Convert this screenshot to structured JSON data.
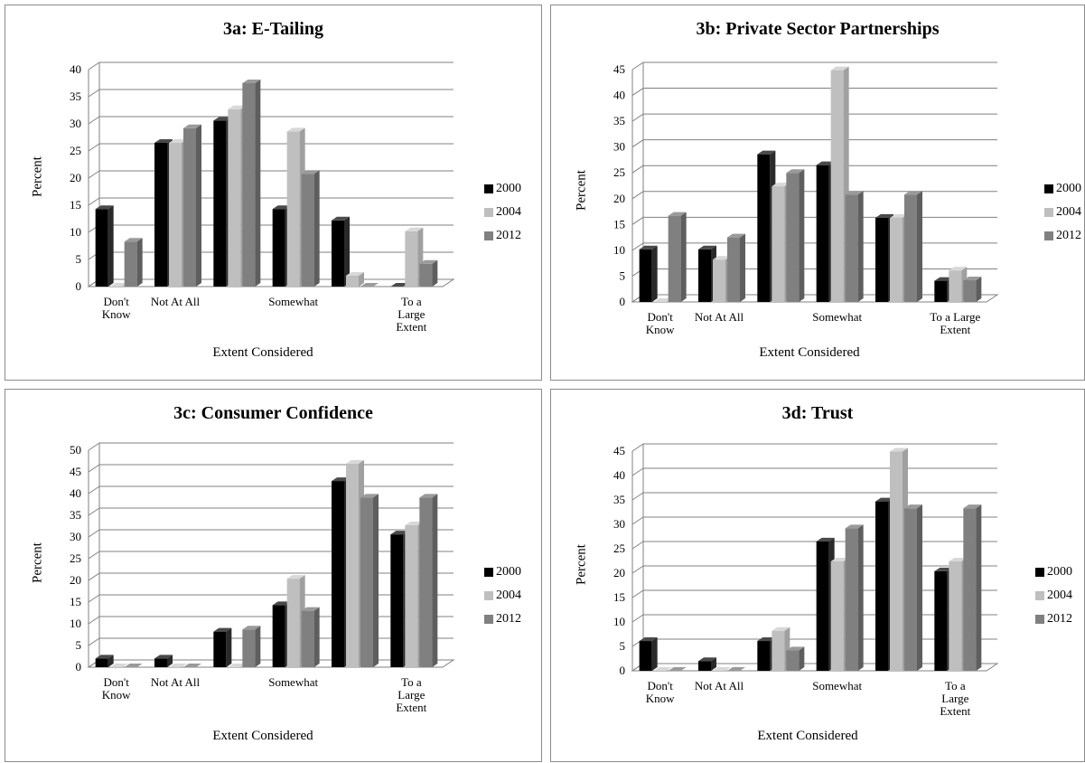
{
  "legend": [
    {
      "name": "2000",
      "color": "#000000",
      "side": "#2a2a2a",
      "top": "#4a4a4a"
    },
    {
      "name": "2004",
      "color": "#bfbfbf",
      "side": "#a0a0a0",
      "top": "#d8d8d8"
    },
    {
      "name": "2012",
      "color": "#808080",
      "side": "#5e5e5e",
      "top": "#9a9a9a"
    }
  ],
  "chart_data": [
    {
      "type": "bar",
      "title": "3a: E-Tailing",
      "xlabel": "Extent Considered",
      "ylabel": "Percent",
      "ylim": [
        0,
        40
      ],
      "yticks": [
        0,
        5,
        10,
        15,
        20,
        25,
        30,
        35,
        40
      ],
      "categories": [
        "Don't Know",
        "Not At All",
        "",
        "Somewhat",
        "",
        "To a Large Extent"
      ],
      "series": [
        {
          "name": "2000",
          "values": [
            14.3,
            26.5,
            30.6,
            14.3,
            12.2,
            0
          ]
        },
        {
          "name": "2004",
          "values": [
            0,
            26.5,
            32.7,
            28.6,
            2.0,
            10.2
          ]
        },
        {
          "name": "2012",
          "values": [
            8.3,
            29.2,
            37.5,
            20.8,
            0,
            4.2
          ]
        }
      ],
      "grid": true,
      "legend_position": "right"
    },
    {
      "type": "bar",
      "title": "3b: Private Sector Partnerships",
      "xlabel": "Extent Considered",
      "ylabel": "Percent",
      "ylim": [
        0,
        45
      ],
      "yticks": [
        0,
        5,
        10,
        15,
        20,
        25,
        30,
        35,
        40,
        45
      ],
      "categories": [
        "Don't Know",
        "Not At All",
        "",
        "Somewhat",
        "",
        "To a Large Extent"
      ],
      "series": [
        {
          "name": "2000",
          "values": [
            10.2,
            10.2,
            28.6,
            26.5,
            16.3,
            4.1
          ]
        },
        {
          "name": "2004",
          "values": [
            0,
            8.2,
            22.4,
            44.9,
            16.3,
            6.1
          ]
        },
        {
          "name": "2012",
          "values": [
            16.7,
            12.5,
            25.0,
            20.8,
            20.8,
            4.2
          ]
        }
      ],
      "grid": true,
      "legend_position": "right"
    },
    {
      "type": "bar",
      "title": "3c: Consumer Confidence",
      "xlabel": "Extent Considered",
      "ylabel": "Percent",
      "ylim": [
        0,
        50
      ],
      "yticks": [
        0,
        5,
        10,
        15,
        20,
        25,
        30,
        35,
        40,
        45,
        50
      ],
      "categories": [
        "Don't Know",
        "Not At All",
        "",
        "Somewhat",
        "",
        "To a Large Extent"
      ],
      "series": [
        {
          "name": "2000",
          "values": [
            2.0,
            2.0,
            8.2,
            14.3,
            42.9,
            30.6
          ]
        },
        {
          "name": "2004",
          "values": [
            0,
            0,
            0,
            20.4,
            46.9,
            32.7
          ]
        },
        {
          "name": "2012",
          "values": [
            0,
            0,
            8.7,
            13.0,
            39.1,
            39.1
          ]
        }
      ],
      "grid": true,
      "legend_position": "right"
    },
    {
      "type": "bar",
      "title": "3d: Trust",
      "xlabel": "Extent Considered",
      "ylabel": "Percent",
      "ylim": [
        0,
        45
      ],
      "yticks": [
        0,
        5,
        10,
        15,
        20,
        25,
        30,
        35,
        40,
        45
      ],
      "categories": [
        "Don't Know",
        "Not At All",
        "",
        "Somewhat",
        "",
        "To a Large Extent"
      ],
      "series": [
        {
          "name": "2000",
          "values": [
            6.1,
            2.0,
            6.1,
            26.5,
            34.7,
            20.4
          ]
        },
        {
          "name": "2004",
          "values": [
            0,
            0,
            8.2,
            22.4,
            44.9,
            22.4
          ]
        },
        {
          "name": "2012",
          "values": [
            0,
            0,
            4.2,
            29.2,
            33.3,
            33.3
          ]
        }
      ],
      "grid": true,
      "legend_position": "right"
    }
  ]
}
